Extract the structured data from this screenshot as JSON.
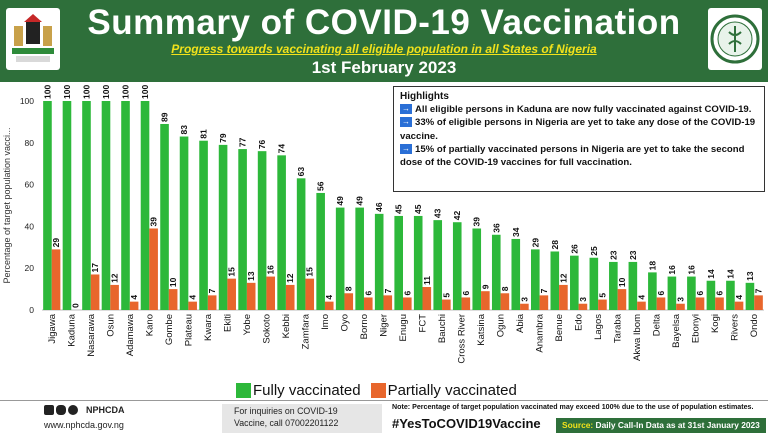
{
  "header": {
    "title": "Summary of COVID-19 Vaccination",
    "subtitle": "Progress towards vaccinating all eligible population in all States of Nigeria",
    "date": "1st February 2023"
  },
  "highlights": {
    "title": "Highlights",
    "items": [
      "All eligible persons in Kaduna are now fully vaccinated against COVID-19.",
      "33% of eligible persons in Nigeria are yet to take any dose of the COVID-19 vaccine.",
      "15% of partially vaccinated persons in Nigeria are yet to take the second dose of the COVID-19 vaccines for full vaccination."
    ],
    "arrow_glyph": "→"
  },
  "colors": {
    "header_bg": "#2e6f3a",
    "subtitle": "#f2e21b",
    "fully": "#2db83a",
    "partially": "#e8662c",
    "arrow_box": "#2a6fd6"
  },
  "chart_data": {
    "type": "bar",
    "ylabel": "Percentage of target population vacci...",
    "ylim": [
      0,
      100
    ],
    "yticks": [
      0,
      20,
      40,
      60,
      80,
      100
    ],
    "categories": [
      "Jigawa",
      "Kaduna",
      "Nasarawa",
      "Osun",
      "Adamawa",
      "Kano",
      "Gombe",
      "Plateau",
      "Kwara",
      "Ekiti",
      "Yobe",
      "Sokoto",
      "Kebbi",
      "Zamfara",
      "Imo",
      "Oyo",
      "Borno",
      "Niger",
      "Enugu",
      "FCT",
      "Bauchi",
      "Cross River",
      "Katsina",
      "Ogun",
      "Abia",
      "Anambra",
      "Benue",
      "Edo",
      "Lagos",
      "Taraba",
      "Akwa Ibom",
      "Delta",
      "Bayelsa",
      "Ebonyi",
      "Kogi",
      "Rivers",
      "Ondo"
    ],
    "series": [
      {
        "name": "Fully vaccinated",
        "values": [
          100,
          100,
          100,
          100,
          100,
          100,
          89,
          83,
          81,
          79,
          77,
          76,
          74,
          63,
          56,
          49,
          49,
          46,
          45,
          45,
          43,
          42,
          39,
          36,
          34,
          29,
          28,
          26,
          25,
          23,
          23,
          18,
          16,
          16,
          14,
          14,
          13
        ]
      },
      {
        "name": "Partially vaccinated",
        "values": [
          29,
          0,
          17,
          12,
          4,
          39,
          10,
          4,
          7,
          15,
          13,
          16,
          12,
          15,
          4,
          8,
          6,
          7,
          6,
          11,
          5,
          6,
          9,
          8,
          3,
          7,
          12,
          3,
          5,
          10,
          4,
          6,
          3,
          6,
          6,
          4,
          7
        ]
      }
    ],
    "legend": {
      "position": "bottom",
      "labels": [
        "Fully vaccinated",
        "Partially vaccinated"
      ]
    },
    "grid": false
  },
  "footer": {
    "org": "NPHCDA",
    "website": "www.nphcda.gov.ng",
    "inquiry": "For inquiries on COVID-19 Vaccine, call 07002201122",
    "note": "Note: Percentage of target population vaccinated may exceed 100% due to the use of population estimates.",
    "hashtag": "#YesToCOVID19Vaccine",
    "source_label": "Source:",
    "source_text": "Daily Call-In Data as at 31st January 2023"
  }
}
